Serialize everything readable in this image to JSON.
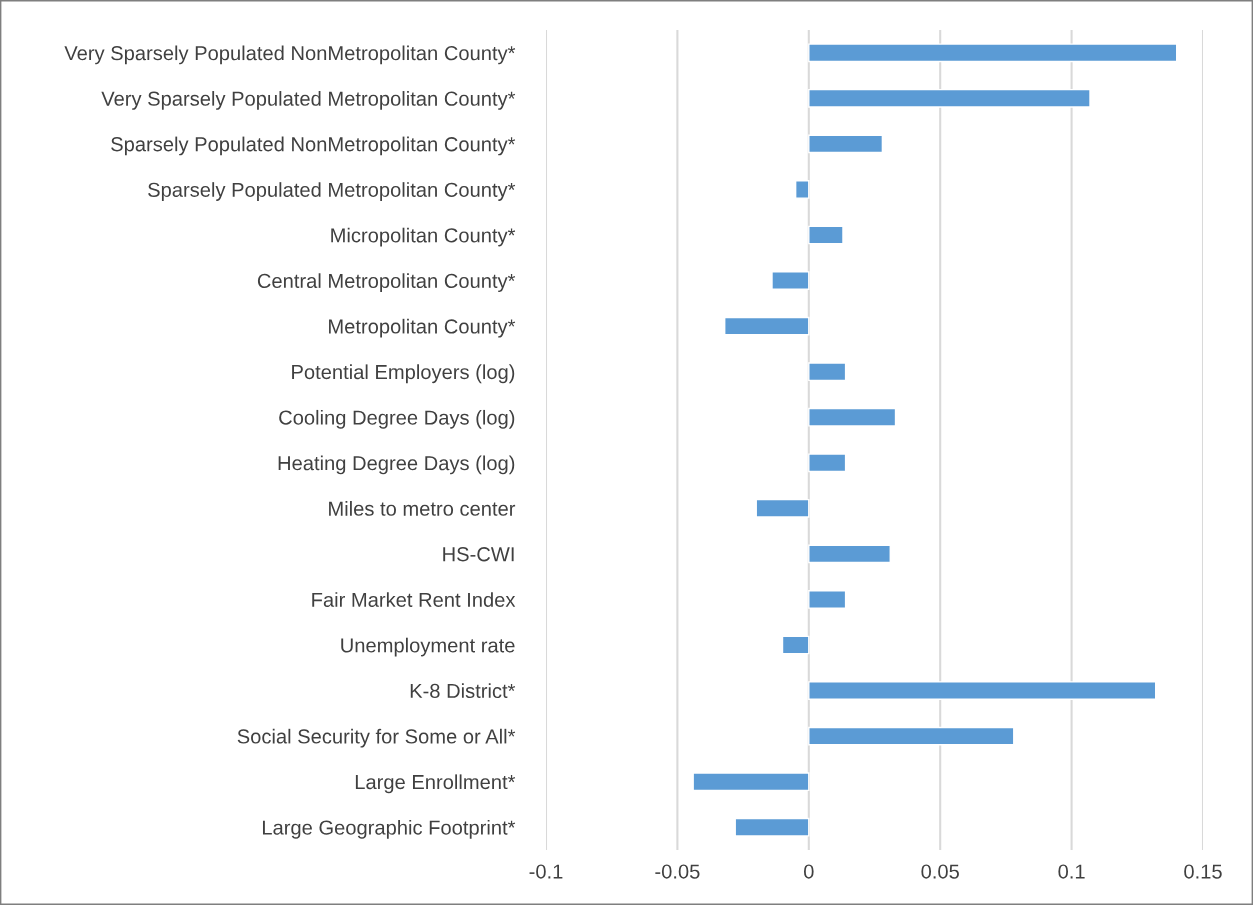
{
  "chart_data": {
    "type": "bar",
    "orientation": "horizontal",
    "categories": [
      "Very Sparsely Populated NonMetropolitan County*",
      "Very Sparsely Populated Metropolitan County*",
      "Sparsely Populated NonMetropolitan County*",
      "Sparsely Populated Metropolitan County*",
      "Micropolitan County*",
      "Central Metropolitan County*",
      "Metropolitan County*",
      "Potential Employers (log)",
      "Cooling Degree Days (log)",
      "Heating Degree Days (log)",
      "Miles to metro center",
      "HS-CWI",
      "Fair Market Rent Index",
      "Unemployment rate",
      "K-8 District*",
      "Social Security for Some or All*",
      "Large Enrollment*",
      "Large Geographic Footprint*"
    ],
    "values": [
      0.14,
      0.107,
      0.028,
      -0.005,
      0.013,
      -0.014,
      -0.032,
      0.014,
      0.033,
      0.014,
      -0.02,
      0.031,
      0.014,
      -0.01,
      0.132,
      0.078,
      -0.044,
      -0.028
    ],
    "color": "#5b9bd5",
    "xlim": [
      -0.1,
      0.15
    ],
    "xticks": [
      -0.1,
      -0.05,
      0,
      0.05,
      0.1,
      0.15
    ],
    "grid": "x"
  }
}
